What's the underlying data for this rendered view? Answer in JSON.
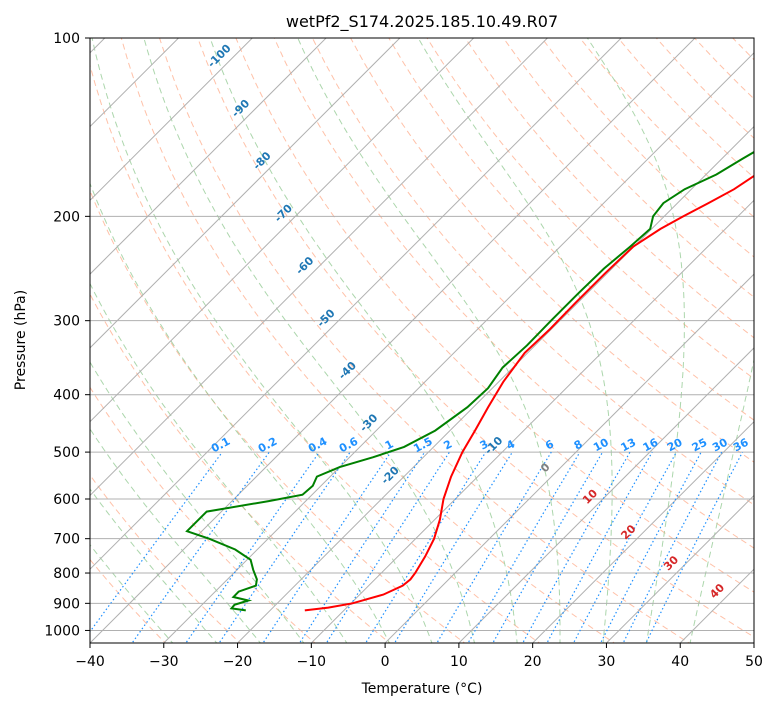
{
  "chart_data": {
    "type": "skew-t",
    "title": "wetPf2_S174.2025.185.10.49.R07",
    "xlabel": "Temperature (°C)",
    "ylabel": "Pressure (hPa)",
    "xlim": [
      -40,
      50
    ],
    "ylim_hpa": [
      1050,
      100
    ],
    "y_log_scale": true,
    "grid": true,
    "x_ticks": [
      "−40",
      "−30",
      "−20",
      "−10",
      "0",
      "10",
      "20",
      "30",
      "40",
      "50"
    ],
    "x_tick_values": [
      -40,
      -30,
      -20,
      -10,
      0,
      10,
      20,
      30,
      40,
      50
    ],
    "y_ticks": [
      "100",
      "200",
      "300",
      "400",
      "500",
      "600",
      "700",
      "800",
      "900",
      "1000"
    ],
    "y_tick_values": [
      100,
      200,
      300,
      400,
      500,
      600,
      700,
      800,
      900,
      1000
    ],
    "colors": {
      "temperature": "#ff0000",
      "dewpoint": "#008000",
      "isotherm_label": "#1f77b4",
      "mixing_ratio": "#1e90ff",
      "isotherm_warm_label": "#d62728",
      "dry_adiabat": "#ffa07a",
      "moist_adiabat": "#90c890",
      "grid": "#b0b0b0"
    },
    "series": [
      {
        "role": "temperature",
        "points": [
          [
            925,
            -15.3
          ],
          [
            915,
            -12.5
          ],
          [
            900,
            -9.8
          ],
          [
            870,
            -6.8
          ],
          [
            840,
            -5.4
          ],
          [
            820,
            -5.2
          ],
          [
            800,
            -5.4
          ],
          [
            750,
            -6.3
          ],
          [
            700,
            -7.5
          ],
          [
            650,
            -9.3
          ],
          [
            600,
            -11.6
          ],
          [
            550,
            -13.6
          ],
          [
            500,
            -15.4
          ],
          [
            460,
            -16.6
          ],
          [
            420,
            -18.0
          ],
          [
            380,
            -19.4
          ],
          [
            340,
            -20.4
          ],
          [
            310,
            -20.2
          ],
          [
            280,
            -20.3
          ],
          [
            250,
            -20.3
          ],
          [
            225,
            -20.1
          ],
          [
            210,
            -18.8
          ],
          [
            200,
            -17.4
          ],
          [
            190,
            -15.8
          ],
          [
            180,
            -14.2
          ],
          [
            170,
            -13.2
          ],
          [
            160,
            -12.4
          ],
          [
            150,
            -11.2
          ],
          [
            140,
            -9.6
          ],
          [
            130,
            -7.5
          ],
          [
            120,
            -5.4
          ],
          [
            110,
            -3.5
          ],
          [
            100,
            -1.5
          ]
        ]
      },
      {
        "role": "dewpoint",
        "points": [
          [
            925,
            -23.3
          ],
          [
            918,
            -25.5
          ],
          [
            905,
            -25.6
          ],
          [
            890,
            -24.3
          ],
          [
            878,
            -26.8
          ],
          [
            860,
            -26.8
          ],
          [
            840,
            -25.3
          ],
          [
            820,
            -26.0
          ],
          [
            790,
            -27.8
          ],
          [
            760,
            -29.5
          ],
          [
            730,
            -33.0
          ],
          [
            700,
            -38.0
          ],
          [
            680,
            -42.0
          ],
          [
            630,
            -42.0
          ],
          [
            605,
            -35.0
          ],
          [
            590,
            -31.3
          ],
          [
            570,
            -31.1
          ],
          [
            550,
            -31.8
          ],
          [
            530,
            -30.0
          ],
          [
            510,
            -26.8
          ],
          [
            490,
            -24.0
          ],
          [
            460,
            -22.0
          ],
          [
            420,
            -20.8
          ],
          [
            390,
            -20.6
          ],
          [
            360,
            -21.4
          ],
          [
            330,
            -21.1
          ],
          [
            300,
            -21.2
          ],
          [
            270,
            -21.2
          ],
          [
            245,
            -21.1
          ],
          [
            225,
            -20.5
          ],
          [
            210,
            -20.2
          ],
          [
            200,
            -21.5
          ],
          [
            190,
            -21.9
          ],
          [
            180,
            -20.9
          ],
          [
            170,
            -18.6
          ],
          [
            160,
            -17.2
          ],
          [
            150,
            -15.6
          ],
          [
            140,
            -14.2
          ],
          [
            130,
            -12.5
          ],
          [
            120,
            -10.8
          ],
          [
            110,
            -9.0
          ],
          [
            100,
            -7.5
          ]
        ]
      }
    ],
    "isotherm_labels": [
      "-100",
      "-90",
      "-80",
      "-70",
      "-60",
      "-50",
      "-40",
      "-30",
      "-20",
      "-10",
      "0",
      "10",
      "20",
      "30",
      "40"
    ],
    "isotherm_label_values": [
      -100,
      -90,
      -80,
      -70,
      -60,
      -50,
      -40,
      -30,
      -20,
      -10,
      0,
      10,
      20,
      30,
      40
    ],
    "mixing_ratio_labels": [
      "0.1",
      "0.2",
      "0.4",
      "0.6",
      "1",
      "1.5",
      "2",
      "3",
      "4",
      "6",
      "8",
      "10",
      "13",
      "16",
      "20",
      "25",
      "30",
      "36"
    ],
    "mixing_ratio_values": [
      0.1,
      0.2,
      0.4,
      0.6,
      1,
      1.5,
      2,
      3,
      4,
      6,
      8,
      10,
      13,
      16,
      20,
      25,
      30,
      36
    ]
  }
}
